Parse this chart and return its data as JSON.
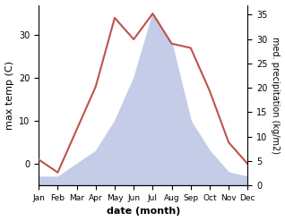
{
  "months": [
    "Jan",
    "Feb",
    "Mar",
    "Apr",
    "May",
    "Jun",
    "Jul",
    "Aug",
    "Sep",
    "Oct",
    "Nov",
    "Dec"
  ],
  "month_indices": [
    1,
    2,
    3,
    4,
    5,
    6,
    7,
    8,
    9,
    10,
    11,
    12
  ],
  "temperature": [
    1,
    -2,
    8,
    18,
    34,
    29,
    35,
    28,
    27,
    17,
    5,
    0
  ],
  "precipitation": [
    -3,
    -3,
    0,
    3,
    10,
    20,
    35,
    28,
    10,
    3,
    -2,
    -3
  ],
  "temp_color": "#c0524a",
  "precip_fill_color": "#c5cce8",
  "ylabel_left": "max temp (C)",
  "ylabel_right": "med. precipitation (kg/m2)",
  "xlabel": "date (month)",
  "ylim_left": [
    -5,
    37
  ],
  "ylim_right": [
    0,
    37
  ],
  "yticks_left": [
    0,
    10,
    20,
    30
  ],
  "yticks_right": [
    0,
    5,
    10,
    15,
    20,
    25,
    30,
    35
  ],
  "background_color": "#ffffff",
  "precip_baseline": -5
}
